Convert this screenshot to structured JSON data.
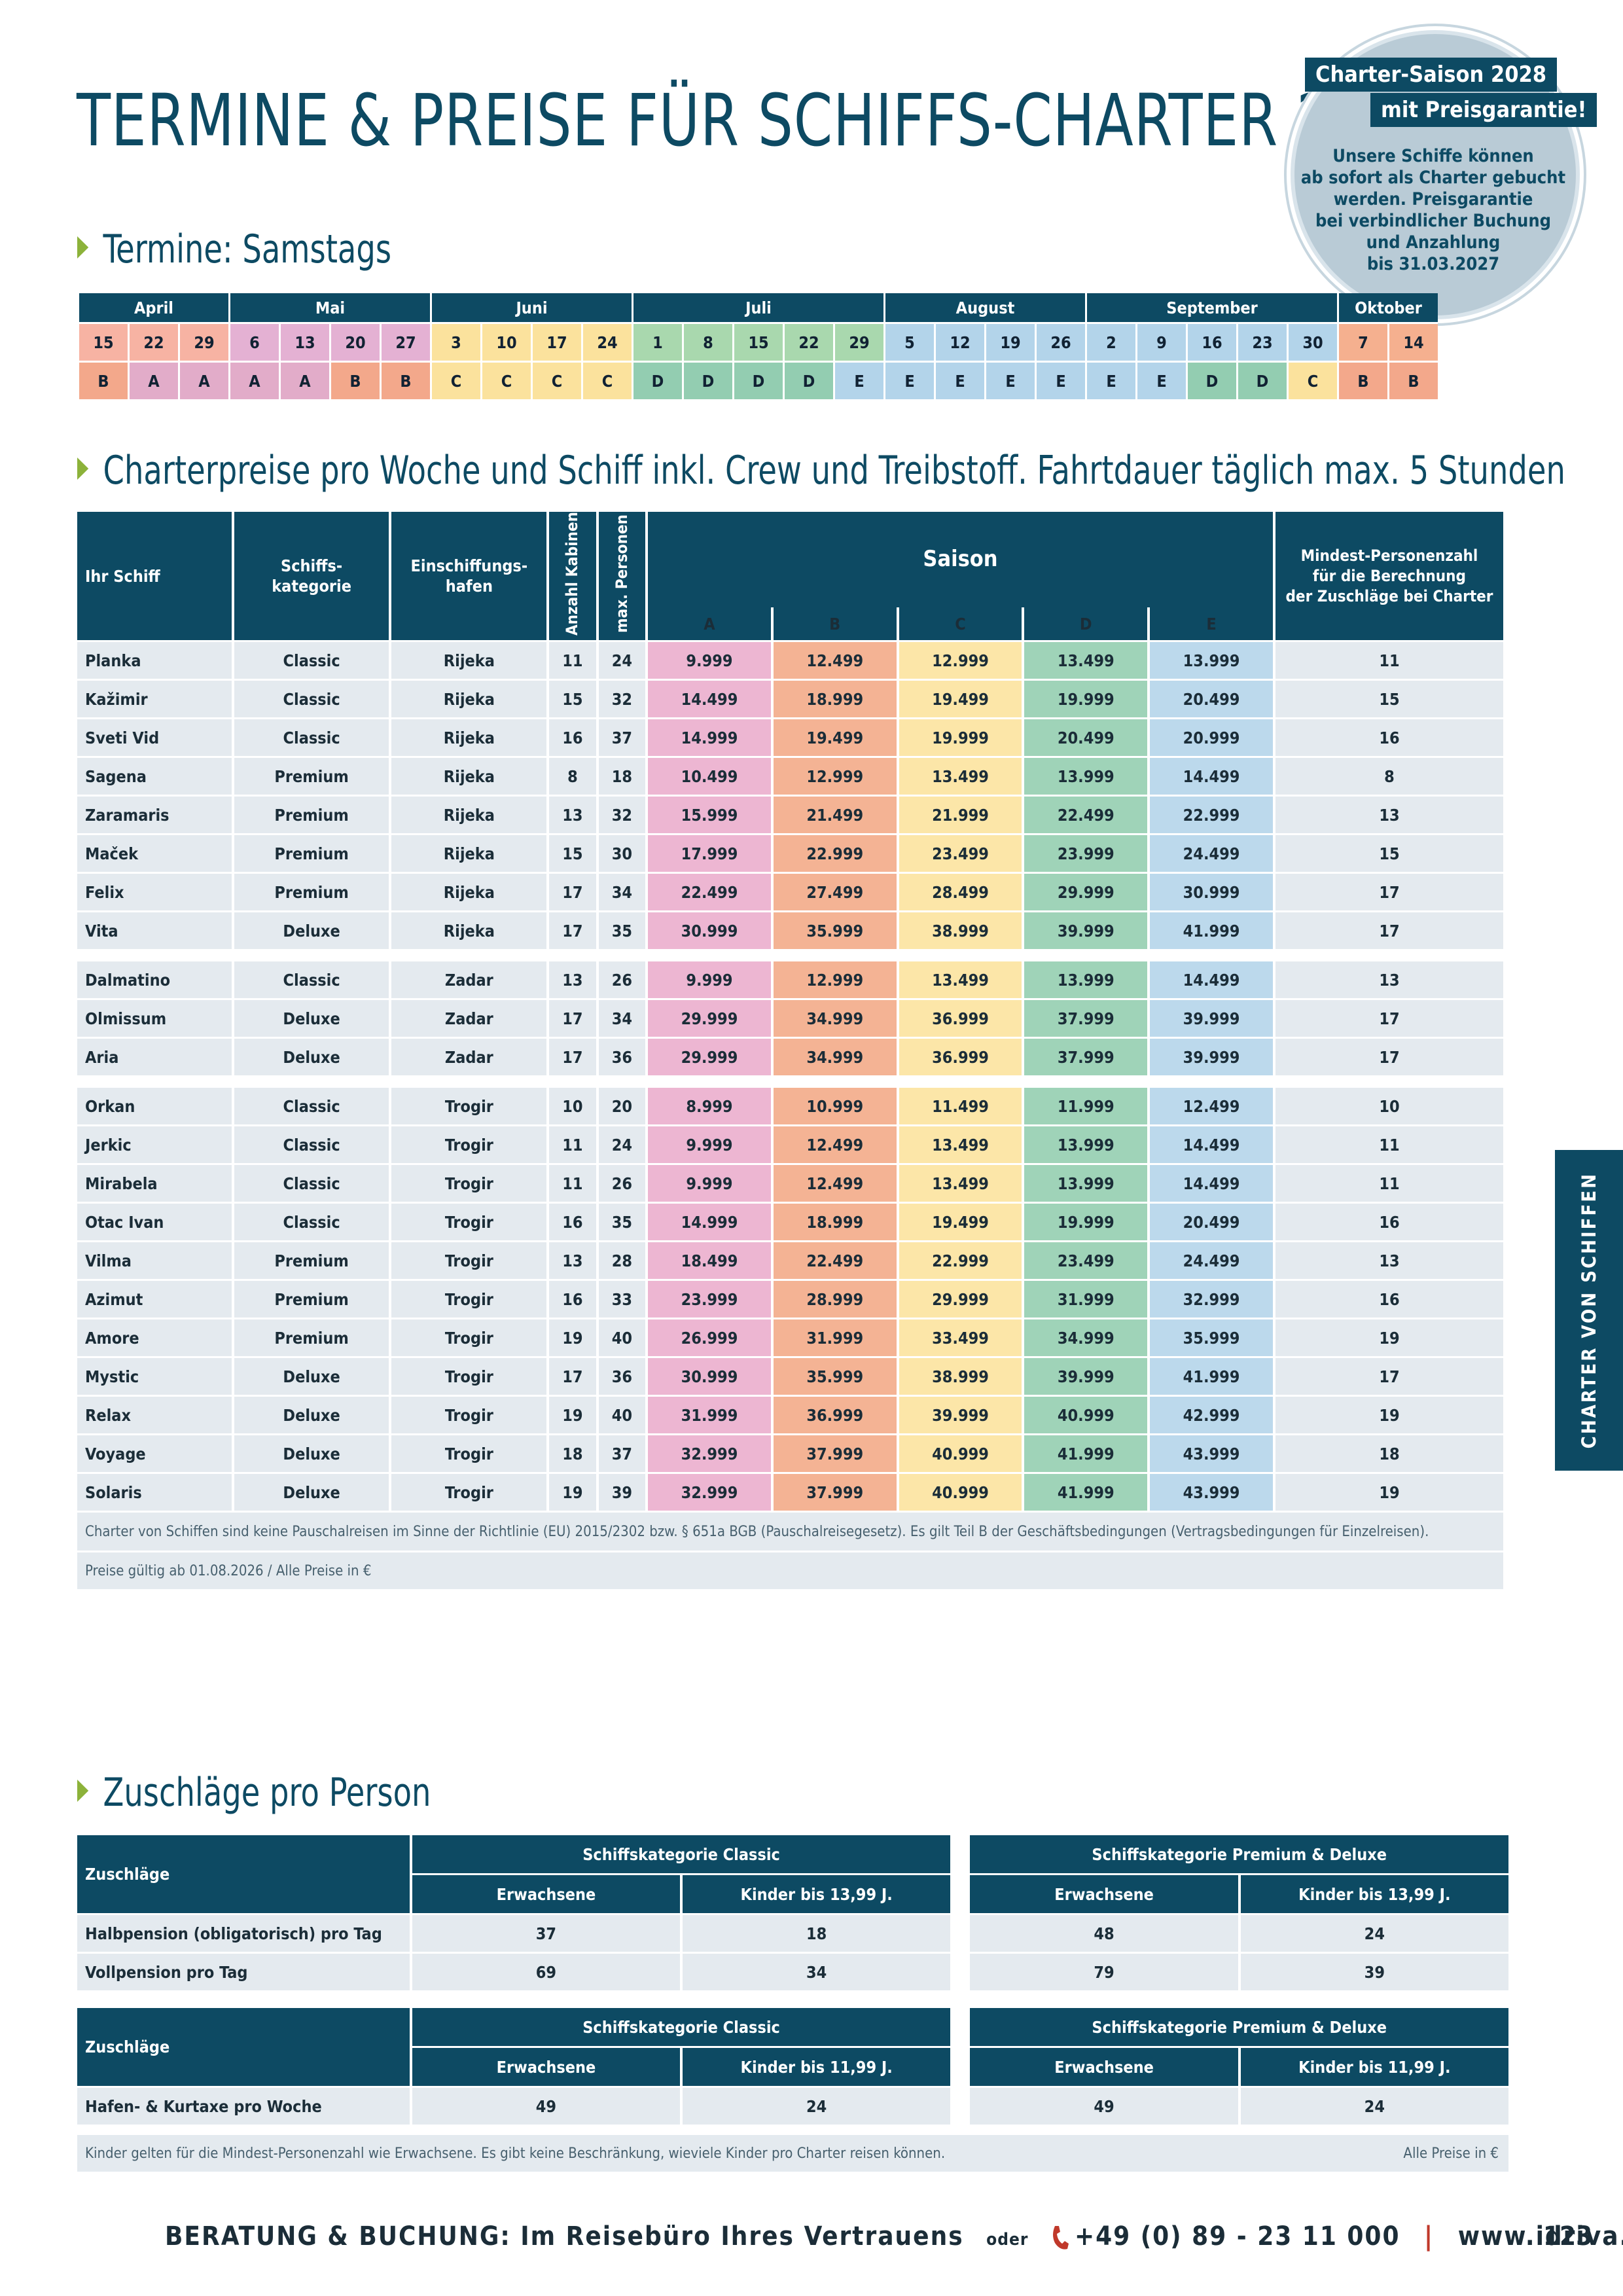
{
  "title": "TERMINE & PREISE FÜR SCHIFFS-CHARTER 2028",
  "badge": {
    "line1": "Charter-Saison 2028",
    "line2": "mit Preisgarantie!",
    "text": [
      "Unsere Schiffe können",
      "ab sofort als Charter gebucht",
      "werden. Preisgarantie",
      "bei verbindlicher Buchung",
      "und Anzahlung",
      "bis 31.03.2027"
    ]
  },
  "termine": {
    "heading": "Termine: Samstags",
    "months": [
      {
        "name": "April",
        "span": 3,
        "cls": "mApr"
      },
      {
        "name": "Mai",
        "span": 4,
        "cls": "mMai"
      },
      {
        "name": "Juni",
        "span": 4,
        "cls": "mJun"
      },
      {
        "name": "Juli",
        "span": 5,
        "cls": "mJul"
      },
      {
        "name": "August",
        "span": 4,
        "cls": "mAug"
      },
      {
        "name": "September",
        "span": 5,
        "cls": "mSep"
      },
      {
        "name": "Oktober",
        "span": 2,
        "cls": "mOkt"
      }
    ],
    "days": [
      "15",
      "22",
      "29",
      "6",
      "13",
      "20",
      "27",
      "3",
      "10",
      "17",
      "24",
      "1",
      "8",
      "15",
      "22",
      "29",
      "5",
      "12",
      "19",
      "26",
      "2",
      "9",
      "16",
      "23",
      "30",
      "7",
      "14"
    ],
    "seasons": [
      "B",
      "A",
      "A",
      "A",
      "A",
      "B",
      "B",
      "C",
      "C",
      "C",
      "C",
      "D",
      "D",
      "D",
      "D",
      "E",
      "E",
      "E",
      "E",
      "E",
      "E",
      "E",
      "D",
      "D",
      "C",
      "B",
      "B"
    ]
  },
  "prices": {
    "heading": "Charterpreise pro Woche und Schiff inkl. Crew und Treibstoff. Fahrtdauer täglich max. 5 Stunden",
    "headers": {
      "ship": "Ihr Schiff",
      "category": "Schiffs-\nkategorie",
      "port": "Einschiffungs-\nhafen",
      "cabins": "Anzahl Kabinen",
      "persons": "max. Personen",
      "season": "Saison",
      "season_cols": [
        "A",
        "B",
        "C",
        "D",
        "E"
      ],
      "min": "Mindest-Personenzahl\nfür die Berechnung\nder Zuschläge bei Charter"
    },
    "groups": [
      [
        [
          "Planka",
          "Classic",
          "Rijeka",
          "11",
          "24",
          "9.999",
          "12.499",
          "12.999",
          "13.499",
          "13.999",
          "11"
        ],
        [
          "Kažimir",
          "Classic",
          "Rijeka",
          "15",
          "32",
          "14.499",
          "18.999",
          "19.499",
          "19.999",
          "20.499",
          "15"
        ],
        [
          "Sveti Vid",
          "Classic",
          "Rijeka",
          "16",
          "37",
          "14.999",
          "19.499",
          "19.999",
          "20.499",
          "20.999",
          "16"
        ],
        [
          "Sagena",
          "Premium",
          "Rijeka",
          "8",
          "18",
          "10.499",
          "12.999",
          "13.499",
          "13.999",
          "14.499",
          "8"
        ],
        [
          "Zaramaris",
          "Premium",
          "Rijeka",
          "13",
          "32",
          "15.999",
          "21.499",
          "21.999",
          "22.499",
          "22.999",
          "13"
        ],
        [
          "Maček",
          "Premium",
          "Rijeka",
          "15",
          "30",
          "17.999",
          "22.999",
          "23.499",
          "23.999",
          "24.499",
          "15"
        ],
        [
          "Felix",
          "Premium",
          "Rijeka",
          "17",
          "34",
          "22.499",
          "27.499",
          "28.499",
          "29.999",
          "30.999",
          "17"
        ],
        [
          "Vita",
          "Deluxe",
          "Rijeka",
          "17",
          "35",
          "30.999",
          "35.999",
          "38.999",
          "39.999",
          "41.999",
          "17"
        ]
      ],
      [
        [
          "Dalmatino",
          "Classic",
          "Zadar",
          "13",
          "26",
          "9.999",
          "12.999",
          "13.499",
          "13.999",
          "14.499",
          "13"
        ],
        [
          "Olmissum",
          "Deluxe",
          "Zadar",
          "17",
          "34",
          "29.999",
          "34.999",
          "36.999",
          "37.999",
          "39.999",
          "17"
        ],
        [
          "Aria",
          "Deluxe",
          "Zadar",
          "17",
          "36",
          "29.999",
          "34.999",
          "36.999",
          "37.999",
          "39.999",
          "17"
        ]
      ],
      [
        [
          "Orkan",
          "Classic",
          "Trogir",
          "10",
          "20",
          "8.999",
          "10.999",
          "11.499",
          "11.999",
          "12.499",
          "10"
        ],
        [
          "Jerkic",
          "Classic",
          "Trogir",
          "11",
          "24",
          "9.999",
          "12.499",
          "13.499",
          "13.999",
          "14.499",
          "11"
        ],
        [
          "Mirabela",
          "Classic",
          "Trogir",
          "11",
          "26",
          "9.999",
          "12.499",
          "13.499",
          "13.999",
          "14.499",
          "11"
        ],
        [
          "Otac Ivan",
          "Classic",
          "Trogir",
          "16",
          "35",
          "14.999",
          "18.999",
          "19.499",
          "19.999",
          "20.499",
          "16"
        ],
        [
          "Vilma",
          "Premium",
          "Trogir",
          "13",
          "28",
          "18.499",
          "22.499",
          "22.999",
          "23.499",
          "24.499",
          "13"
        ],
        [
          "Azimut",
          "Premium",
          "Trogir",
          "16",
          "33",
          "23.999",
          "28.999",
          "29.999",
          "31.999",
          "32.999",
          "16"
        ],
        [
          "Amore",
          "Premium",
          "Trogir",
          "19",
          "40",
          "26.999",
          "31.999",
          "33.499",
          "34.999",
          "35.999",
          "19"
        ],
        [
          "Mystic",
          "Deluxe",
          "Trogir",
          "17",
          "36",
          "30.999",
          "35.999",
          "38.999",
          "39.999",
          "41.999",
          "17"
        ],
        [
          "Relax",
          "Deluxe",
          "Trogir",
          "19",
          "40",
          "31.999",
          "36.999",
          "39.999",
          "40.999",
          "42.999",
          "19"
        ],
        [
          "Voyage",
          "Deluxe",
          "Trogir",
          "18",
          "37",
          "32.999",
          "37.999",
          "40.999",
          "41.999",
          "43.999",
          "18"
        ],
        [
          "Solaris",
          "Deluxe",
          "Trogir",
          "19",
          "39",
          "32.999",
          "37.999",
          "40.999",
          "41.999",
          "43.999",
          "19"
        ]
      ]
    ],
    "note1": "Charter von Schiffen sind keine Pauschalreisen im Sinne der Richtlinie (EU) 2015/2302 bzw. § 651a BGB (Pauschalreisegesetz).  Es gilt Teil B der Geschäftsbedingungen (Vertragsbedingungen für Einzelreisen).",
    "note2": "Preise gültig ab 01.08.2026 / Alle  Preise in €"
  },
  "side_tab": "CHARTER VON SCHIFFEN",
  "zuschlaege": {
    "heading": "Zuschläge pro Person",
    "table1": {
      "label": "Zuschläge",
      "cat1": "Schiffskategorie Classic",
      "cat2": "Schiffskategorie Premium & Deluxe",
      "adult": "Erwachsene",
      "child": "Kinder bis 13,99 J.",
      "rows": [
        [
          "Halbpension (obligatorisch) pro Tag",
          "37",
          "18",
          "48",
          "24"
        ],
        [
          "Vollpension pro Tag",
          "69",
          "34",
          "79",
          "39"
        ]
      ]
    },
    "table2": {
      "label": "Zuschläge",
      "cat1": "Schiffskategorie Classic",
      "cat2": "Schiffskategorie Premium & Deluxe",
      "adult": "Erwachsene",
      "child": "Kinder bis 11,99 J.",
      "rows": [
        [
          "Hafen- & Kurtaxe pro Woche",
          "49",
          "24",
          "49",
          "24"
        ]
      ]
    },
    "note": "Kinder gelten für die Mindest-Personenzahl wie Erwachsene. Es gibt keine Beschränkung, wieviele Kinder pro Charter reisen können.",
    "note_right": "Alle  Preise in €"
  },
  "footer": {
    "label": "BERATUNG & BUCHUNG:",
    "text": "Im Reisebüro Ihres Vertrauens",
    "oder": "oder",
    "phone": "+49 (0) 89 - 23 11 000",
    "sep": "|",
    "url": "www.idriva.de",
    "icon": "phone-icon"
  },
  "page_number": "123",
  "colors": {
    "primary": "#0d4a63",
    "accent_green": "#8cb23a",
    "season_A": "#e2acc9",
    "season_B": "#f3a88b",
    "season_C": "#fbe29d",
    "season_D": "#93cdb1",
    "season_E": "#b3d4ea",
    "row_gray": "#e4eaef"
  }
}
